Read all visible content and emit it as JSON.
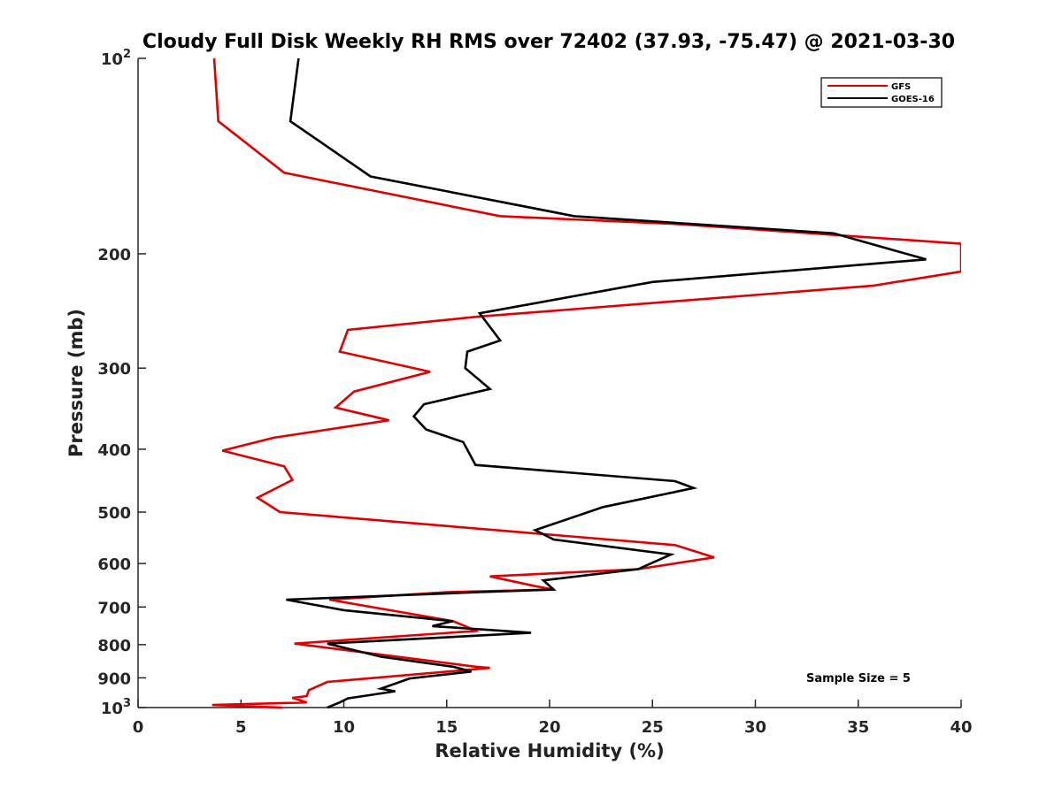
{
  "chart_data": {
    "type": "line",
    "title": "Cloudy Full Disk Weekly RH RMS over 72402 (37.93, -75.47) @ 2021-03-30",
    "xlabel": "Relative Humidity (%)",
    "ylabel": "Pressure (mb)",
    "xlim": [
      0,
      40
    ],
    "ylim": [
      1000,
      100
    ],
    "yscale": "log",
    "x_ticks": [
      0,
      5,
      10,
      15,
      20,
      25,
      30,
      35,
      40
    ],
    "y_ticks": [
      {
        "value": 100,
        "label": "10",
        "sup": "2"
      },
      {
        "value": 200,
        "label": "200"
      },
      {
        "value": 300,
        "label": "300"
      },
      {
        "value": 400,
        "label": "400"
      },
      {
        "value": 500,
        "label": "500"
      },
      {
        "value": 600,
        "label": "600"
      },
      {
        "value": 700,
        "label": "700"
      },
      {
        "value": 800,
        "label": "800"
      },
      {
        "value": 900,
        "label": "900"
      },
      {
        "value": 1000,
        "label": "10",
        "sup": "3"
      }
    ],
    "grid": false,
    "legend_position": "top-right",
    "annotation": "Sample Size = 5",
    "series": [
      {
        "name": "GFS",
        "color": "#e00000",
        "points": [
          [
            3.7,
            100
          ],
          [
            3.9,
            125
          ],
          [
            7.1,
            150
          ],
          [
            17.6,
            175
          ],
          [
            26.3,
            180
          ],
          [
            40,
            193
          ],
          [
            40,
            213
          ],
          [
            35.7,
            224
          ],
          [
            16.5,
            250
          ],
          [
            10.2,
            262
          ],
          [
            9.8,
            283
          ],
          [
            14.2,
            304
          ],
          [
            10.5,
            326
          ],
          [
            9.6,
            345
          ],
          [
            12.2,
            361
          ],
          [
            6.6,
            384
          ],
          [
            4.1,
            402
          ],
          [
            7.1,
            425
          ],
          [
            7.5,
            446
          ],
          [
            5.8,
            475
          ],
          [
            6.9,
            500
          ],
          [
            26.1,
            562
          ],
          [
            28.0,
            587
          ],
          [
            24.3,
            612
          ],
          [
            17.1,
            628
          ],
          [
            19.3,
            650
          ],
          [
            20.2,
            658
          ],
          [
            15.0,
            664
          ],
          [
            9.3,
            682
          ],
          [
            15.3,
            736
          ],
          [
            15.9,
            749
          ],
          [
            16.4,
            762
          ],
          [
            7.6,
            797
          ],
          [
            16.4,
            865
          ],
          [
            17.1,
            869
          ],
          [
            9.2,
            913
          ],
          [
            8.3,
            940
          ],
          [
            8.2,
            960
          ],
          [
            7.5,
            966
          ],
          [
            8.2,
            982
          ],
          [
            3.6,
            991
          ],
          [
            7.0,
            1000
          ]
        ]
      },
      {
        "name": "GOES-16",
        "color": "#000000",
        "points": [
          [
            7.8,
            100
          ],
          [
            7.4,
            125
          ],
          [
            11.3,
            152
          ],
          [
            21.2,
            175
          ],
          [
            33.8,
            186
          ],
          [
            38.3,
            204
          ],
          [
            25.0,
            221
          ],
          [
            16.6,
            247
          ],
          [
            17.6,
            272
          ],
          [
            16.0,
            283
          ],
          [
            15.9,
            300
          ],
          [
            17.1,
            323
          ],
          [
            13.9,
            341
          ],
          [
            13.4,
            356
          ],
          [
            14.0,
            373
          ],
          [
            15.8,
            390
          ],
          [
            16.4,
            423
          ],
          [
            26.1,
            448
          ],
          [
            27.0,
            459
          ],
          [
            22.6,
            491
          ],
          [
            19.3,
            533
          ],
          [
            20.2,
            551
          ],
          [
            25.9,
            581
          ],
          [
            24.3,
            612
          ],
          [
            19.7,
            637
          ],
          [
            20.2,
            658
          ],
          [
            16.6,
            664
          ],
          [
            7.2,
            682
          ],
          [
            10.0,
            708
          ],
          [
            15.3,
            736
          ],
          [
            14.3,
            749
          ],
          [
            19.1,
            767
          ],
          [
            9.2,
            797
          ],
          [
            11.8,
            835
          ],
          [
            15.3,
            865
          ],
          [
            16.2,
            880
          ],
          [
            13.2,
            902
          ],
          [
            11.8,
            935
          ],
          [
            12.5,
            944
          ],
          [
            10.2,
            968
          ],
          [
            9.8,
            982
          ],
          [
            9.2,
            1000
          ]
        ]
      }
    ]
  }
}
